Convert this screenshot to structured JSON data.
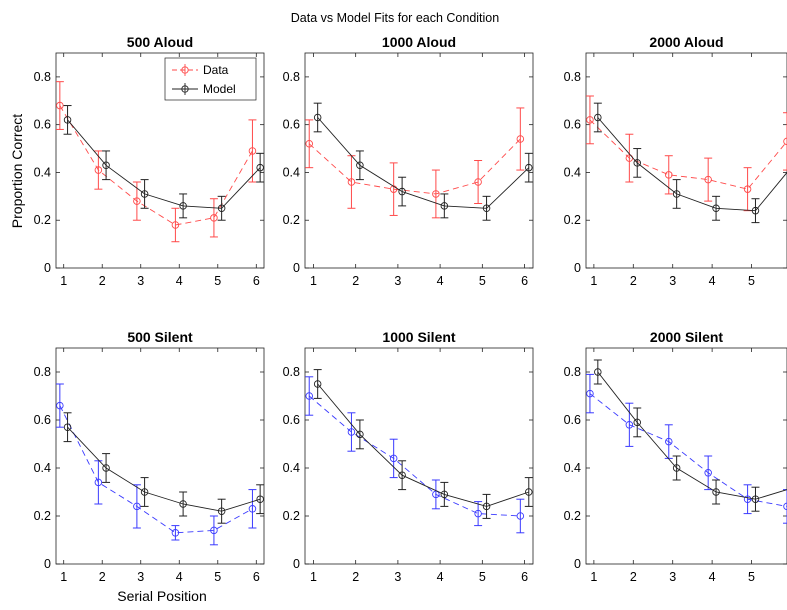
{
  "figure": {
    "title": "Data vs Model Fits for each Condition"
  },
  "axes": {
    "ylabel": "Proportion Correct",
    "xlabel": "Serial Position",
    "yticks": [
      "0",
      "0.2",
      "0.4",
      "0.6",
      "0.8"
    ],
    "ytick_values": [
      0,
      0.2,
      0.4,
      0.6,
      0.8
    ]
  },
  "legend": {
    "data_label": "Data",
    "model_label": "Model",
    "location": "top-right of first panel"
  },
  "colors": {
    "aloud_data": "#ff4a4a",
    "silent_data": "#3a3aff",
    "model": "#222222",
    "axis": "#222222"
  },
  "chart_data": [
    {
      "type": "line",
      "title": "500 Aloud",
      "xlim": [
        0.8,
        6.2
      ],
      "ylim": [
        0,
        0.9
      ],
      "xticks": [
        "1",
        "2",
        "3",
        "4",
        "5",
        "6"
      ],
      "series": [
        {
          "name": "Data",
          "x": [
            0.9,
            1.9,
            2.9,
            3.9,
            4.9,
            5.9
          ],
          "y": [
            0.68,
            0.41,
            0.28,
            0.18,
            0.21,
            0.49
          ],
          "err": [
            0.1,
            0.08,
            0.08,
            0.07,
            0.08,
            0.13
          ]
        },
        {
          "name": "Model",
          "x": [
            1.1,
            2.1,
            3.1,
            4.1,
            5.1,
            6.1
          ],
          "y": [
            0.62,
            0.43,
            0.31,
            0.26,
            0.25,
            0.42
          ],
          "err": [
            0.06,
            0.06,
            0.06,
            0.05,
            0.05,
            0.06
          ]
        }
      ]
    },
    {
      "type": "line",
      "title": "1000 Aloud",
      "xlim": [
        0.8,
        6.2
      ],
      "ylim": [
        0,
        0.9
      ],
      "xticks": [
        "1",
        "2",
        "3",
        "4",
        "5",
        "6"
      ],
      "series": [
        {
          "name": "Data",
          "x": [
            0.9,
            1.9,
            2.9,
            3.9,
            4.9,
            5.9
          ],
          "y": [
            0.52,
            0.36,
            0.33,
            0.31,
            0.36,
            0.54
          ],
          "err": [
            0.1,
            0.11,
            0.11,
            0.1,
            0.09,
            0.13
          ]
        },
        {
          "name": "Model",
          "x": [
            1.1,
            2.1,
            3.1,
            4.1,
            5.1,
            6.1
          ],
          "y": [
            0.63,
            0.43,
            0.32,
            0.26,
            0.25,
            0.42
          ],
          "err": [
            0.06,
            0.06,
            0.06,
            0.05,
            0.05,
            0.06
          ]
        }
      ]
    },
    {
      "type": "line",
      "title": "2000 Aloud",
      "xlim": [
        0.8,
        5.9
      ],
      "ylim": [
        0,
        0.9
      ],
      "xticks": [
        "1",
        "2",
        "3",
        "4",
        "5"
      ],
      "series": [
        {
          "name": "Data",
          "x": [
            0.9,
            1.9,
            2.9,
            3.9,
            4.9,
            5.9
          ],
          "y": [
            0.62,
            0.46,
            0.39,
            0.37,
            0.33,
            0.53
          ],
          "err": [
            0.1,
            0.1,
            0.08,
            0.09,
            0.09,
            0.12
          ]
        },
        {
          "name": "Model",
          "x": [
            1.1,
            2.1,
            3.1,
            4.1,
            5.1,
            6.1
          ],
          "y": [
            0.63,
            0.44,
            0.31,
            0.25,
            0.24,
            0.44
          ],
          "err": [
            0.06,
            0.06,
            0.06,
            0.05,
            0.05,
            0.06
          ]
        }
      ]
    },
    {
      "type": "line",
      "title": "500 Silent",
      "xlim": [
        0.8,
        6.2
      ],
      "ylim": [
        0,
        0.9
      ],
      "xticks": [
        "1",
        "2",
        "3",
        "4",
        "5",
        "6"
      ],
      "series": [
        {
          "name": "Data",
          "x": [
            0.9,
            1.9,
            2.9,
            3.9,
            4.9,
            5.9
          ],
          "y": [
            0.66,
            0.34,
            0.24,
            0.13,
            0.14,
            0.23
          ],
          "err": [
            0.09,
            0.09,
            0.09,
            0.03,
            0.06,
            0.08
          ]
        },
        {
          "name": "Model",
          "x": [
            1.1,
            2.1,
            3.1,
            4.1,
            5.1,
            6.1
          ],
          "y": [
            0.57,
            0.4,
            0.3,
            0.25,
            0.22,
            0.27
          ],
          "err": [
            0.06,
            0.06,
            0.06,
            0.05,
            0.05,
            0.06
          ]
        }
      ]
    },
    {
      "type": "line",
      "title": "1000 Silent",
      "xlim": [
        0.8,
        6.2
      ],
      "ylim": [
        0,
        0.9
      ],
      "xticks": [
        "1",
        "2",
        "3",
        "4",
        "5",
        "6"
      ],
      "series": [
        {
          "name": "Data",
          "x": [
            0.9,
            1.9,
            2.9,
            3.9,
            4.9,
            5.9
          ],
          "y": [
            0.7,
            0.55,
            0.44,
            0.29,
            0.21,
            0.2
          ],
          "err": [
            0.08,
            0.08,
            0.08,
            0.06,
            0.05,
            0.07
          ]
        },
        {
          "name": "Model",
          "x": [
            1.1,
            2.1,
            3.1,
            4.1,
            5.1,
            6.1
          ],
          "y": [
            0.75,
            0.54,
            0.37,
            0.29,
            0.24,
            0.3
          ],
          "err": [
            0.06,
            0.06,
            0.06,
            0.05,
            0.05,
            0.06
          ]
        }
      ]
    },
    {
      "type": "line",
      "title": "2000 Silent",
      "xlim": [
        0.8,
        5.9
      ],
      "ylim": [
        0,
        0.9
      ],
      "xticks": [
        "1",
        "2",
        "3",
        "4",
        "5"
      ],
      "series": [
        {
          "name": "Data",
          "x": [
            0.9,
            1.9,
            2.9,
            3.9,
            4.9,
            5.9
          ],
          "y": [
            0.71,
            0.58,
            0.51,
            0.38,
            0.27,
            0.24
          ],
          "err": [
            0.08,
            0.09,
            0.07,
            0.07,
            0.06,
            0.07
          ]
        },
        {
          "name": "Model",
          "x": [
            1.1,
            2.1,
            3.1,
            4.1,
            5.1,
            6.1
          ],
          "y": [
            0.8,
            0.59,
            0.4,
            0.3,
            0.27,
            0.32
          ],
          "err": [
            0.05,
            0.06,
            0.05,
            0.05,
            0.05,
            0.06
          ]
        }
      ]
    }
  ]
}
